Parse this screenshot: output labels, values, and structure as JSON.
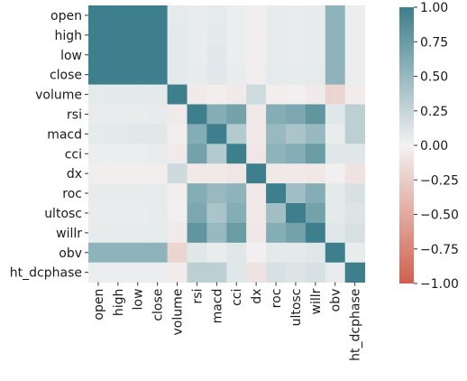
{
  "chart_data": {
    "type": "heatmap",
    "title": "",
    "xlabel": "",
    "ylabel": "",
    "labels": [
      "open",
      "high",
      "low",
      "close",
      "volume",
      "rsi",
      "macd",
      "cci",
      "dx",
      "roc",
      "ultosc",
      "willr",
      "obv",
      "ht_dcphase"
    ],
    "colorbar": {
      "range": [
        -1.0,
        1.0
      ],
      "ticks": [
        1.0,
        0.75,
        0.5,
        0.25,
        0.0,
        -0.25,
        -0.5,
        -0.75,
        -1.0
      ],
      "tick_labels": [
        "1.00",
        "0.75",
        "0.50",
        "0.25",
        "0.00",
        "−0.25",
        "−0.50",
        "−0.75",
        "−1.00"
      ],
      "colormap": "diverging",
      "negative_color": "#d1604d",
      "center_color": "#f2f2f2",
      "positive_color": "#3d7f8c"
    },
    "matrix": [
      [
        1.0,
        1.0,
        1.0,
        1.0,
        0.07,
        0.05,
        0.07,
        0.04,
        -0.03,
        0.06,
        0.05,
        0.06,
        0.55,
        0.04
      ],
      [
        1.0,
        1.0,
        1.0,
        1.0,
        0.08,
        0.05,
        0.08,
        0.04,
        -0.03,
        0.06,
        0.05,
        0.06,
        0.55,
        0.04
      ],
      [
        1.0,
        1.0,
        1.0,
        1.0,
        0.08,
        0.05,
        0.09,
        0.04,
        -0.03,
        0.06,
        0.05,
        0.06,
        0.55,
        0.04
      ],
      [
        1.0,
        1.0,
        1.0,
        1.0,
        0.08,
        0.06,
        0.09,
        0.05,
        -0.03,
        0.07,
        0.06,
        0.07,
        0.55,
        0.04
      ],
      [
        0.07,
        0.08,
        0.08,
        0.08,
        1.0,
        -0.05,
        -0.03,
        -0.05,
        0.2,
        -0.03,
        -0.02,
        -0.05,
        -0.2,
        -0.04
      ],
      [
        0.05,
        0.05,
        0.05,
        0.06,
        -0.05,
        1.0,
        0.6,
        0.7,
        -0.06,
        0.6,
        0.65,
        0.8,
        0.1,
        0.3
      ],
      [
        0.07,
        0.08,
        0.09,
        0.09,
        -0.03,
        0.6,
        1.0,
        0.35,
        -0.06,
        0.5,
        0.4,
        0.5,
        0.05,
        0.3
      ],
      [
        0.04,
        0.04,
        0.04,
        0.05,
        -0.05,
        0.7,
        0.35,
        1.0,
        -0.08,
        0.55,
        0.6,
        0.75,
        0.1,
        0.1
      ],
      [
        -0.03,
        -0.03,
        -0.03,
        -0.03,
        0.2,
        -0.06,
        -0.06,
        -0.08,
        1.0,
        -0.06,
        -0.06,
        -0.07,
        -0.02,
        -0.1
      ],
      [
        0.06,
        0.06,
        0.06,
        0.07,
        -0.03,
        0.6,
        0.5,
        0.55,
        -0.06,
        1.0,
        0.45,
        0.6,
        0.08,
        0.15
      ],
      [
        0.05,
        0.05,
        0.05,
        0.06,
        -0.02,
        0.65,
        0.4,
        0.6,
        -0.06,
        0.45,
        1.0,
        0.7,
        0.08,
        0.12
      ],
      [
        0.06,
        0.06,
        0.06,
        0.07,
        -0.05,
        0.8,
        0.5,
        0.75,
        -0.07,
        0.6,
        0.7,
        1.0,
        0.1,
        0.15
      ],
      [
        0.55,
        0.55,
        0.55,
        0.55,
        -0.2,
        0.1,
        0.05,
        0.1,
        -0.02,
        0.08,
        0.08,
        0.1,
        1.0,
        0.05
      ],
      [
        0.04,
        0.04,
        0.04,
        0.04,
        -0.04,
        0.3,
        0.3,
        0.1,
        -0.1,
        0.15,
        0.12,
        0.15,
        0.05,
        1.0
      ]
    ]
  }
}
